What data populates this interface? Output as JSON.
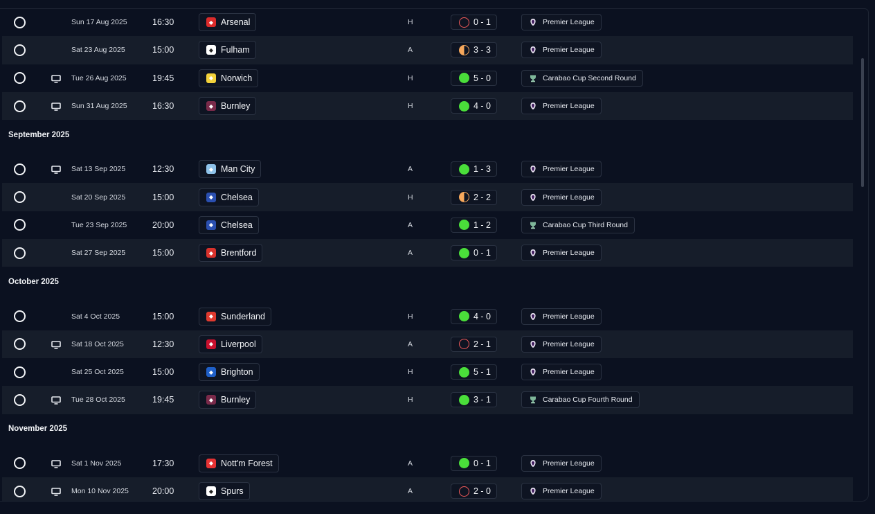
{
  "colors": {
    "win": "#4ade3a",
    "draw": "#f7a85c",
    "loss": "#f05a5a",
    "background": "#0b1120",
    "row_alt": "#161d2a"
  },
  "fixtures": [
    {
      "date": "Sun 17 Aug 2025",
      "time": "16:30",
      "opponent": "Arsenal",
      "crest": "arsenal",
      "crest_color": "#db2b2b",
      "venue": "H",
      "result": "0 - 1",
      "outcome": "loss",
      "tv": false,
      "competition": "Premier League",
      "comp_icon": "premier-league-icon",
      "alt": false
    },
    {
      "date": "Sat 23 Aug 2025",
      "time": "15:00",
      "opponent": "Fulham",
      "crest": "fulham",
      "crest_color": "#ffffff",
      "venue": "A",
      "result": "3 - 3",
      "outcome": "draw",
      "tv": false,
      "competition": "Premier League",
      "comp_icon": "premier-league-icon",
      "alt": true
    },
    {
      "date": "Tue 26 Aug 2025",
      "time": "19:45",
      "opponent": "Norwich",
      "crest": "norwich",
      "crest_color": "#f2d13a",
      "venue": "H",
      "result": "5 - 0",
      "outcome": "win",
      "tv": true,
      "competition": "Carabao Cup Second Round",
      "comp_icon": "carabao-cup-icon",
      "alt": false
    },
    {
      "date": "Sun 31 Aug 2025",
      "time": "16:30",
      "opponent": "Burnley",
      "crest": "burnley",
      "crest_color": "#7a2a4a",
      "venue": "H",
      "result": "4 - 0",
      "outcome": "win",
      "tv": true,
      "competition": "Premier League",
      "comp_icon": "premier-league-icon",
      "alt": true
    },
    {
      "month": "September 2025"
    },
    {
      "date": "Sat 13 Sep 2025",
      "time": "12:30",
      "opponent": "Man City",
      "crest": "mancity",
      "crest_color": "#8fc3ea",
      "venue": "A",
      "result": "1 - 3",
      "outcome": "win",
      "tv": true,
      "competition": "Premier League",
      "comp_icon": "premier-league-icon",
      "alt": false
    },
    {
      "date": "Sat 20 Sep 2025",
      "time": "15:00",
      "opponent": "Chelsea",
      "crest": "chelsea",
      "crest_color": "#2a4fb0",
      "venue": "H",
      "result": "2 - 2",
      "outcome": "draw",
      "tv": false,
      "competition": "Premier League",
      "comp_icon": "premier-league-icon",
      "alt": true
    },
    {
      "date": "Tue 23 Sep 2025",
      "time": "20:00",
      "opponent": "Chelsea",
      "crest": "chelsea",
      "crest_color": "#2a4fb0",
      "venue": "A",
      "result": "1 - 2",
      "outcome": "win",
      "tv": false,
      "competition": "Carabao Cup Third Round",
      "comp_icon": "carabao-cup-icon",
      "alt": false
    },
    {
      "date": "Sat 27 Sep 2025",
      "time": "15:00",
      "opponent": "Brentford",
      "crest": "brentford",
      "crest_color": "#d8322c",
      "venue": "A",
      "result": "0 - 1",
      "outcome": "win",
      "tv": false,
      "competition": "Premier League",
      "comp_icon": "premier-league-icon",
      "alt": true
    },
    {
      "month": "October 2025"
    },
    {
      "date": "Sat 4 Oct 2025",
      "time": "15:00",
      "opponent": "Sunderland",
      "crest": "sunderland",
      "crest_color": "#e03a2f",
      "venue": "H",
      "result": "4 - 0",
      "outcome": "win",
      "tv": false,
      "competition": "Premier League",
      "comp_icon": "premier-league-icon",
      "alt": false
    },
    {
      "date": "Sat 18 Oct 2025",
      "time": "12:30",
      "opponent": "Liverpool",
      "crest": "liverpool",
      "crest_color": "#c8102e",
      "venue": "A",
      "result": "2 - 1",
      "outcome": "loss",
      "tv": true,
      "competition": "Premier League",
      "comp_icon": "premier-league-icon",
      "alt": true
    },
    {
      "date": "Sat 25 Oct 2025",
      "time": "15:00",
      "opponent": "Brighton",
      "crest": "brighton",
      "crest_color": "#1f5fc7",
      "venue": "H",
      "result": "5 - 1",
      "outcome": "win",
      "tv": false,
      "competition": "Premier League",
      "comp_icon": "premier-league-icon",
      "alt": false
    },
    {
      "date": "Tue 28 Oct 2025",
      "time": "19:45",
      "opponent": "Burnley",
      "crest": "burnley",
      "crest_color": "#7a2a4a",
      "venue": "H",
      "result": "3 - 1",
      "outcome": "win",
      "tv": true,
      "competition": "Carabao Cup Fourth Round",
      "comp_icon": "carabao-cup-icon",
      "alt": true
    },
    {
      "month": "November 2025"
    },
    {
      "date": "Sat 1 Nov 2025",
      "time": "17:30",
      "opponent": "Nott'm Forest",
      "crest": "forest",
      "crest_color": "#e53233",
      "venue": "A",
      "result": "0 - 1",
      "outcome": "win",
      "tv": true,
      "competition": "Premier League",
      "comp_icon": "premier-league-icon",
      "alt": false
    },
    {
      "date": "Mon 10 Nov 2025",
      "time": "20:00",
      "opponent": "Spurs",
      "crest": "spurs",
      "crest_color": "#ffffff",
      "venue": "A",
      "result": "2 - 0",
      "outcome": "loss",
      "tv": true,
      "competition": "Premier League",
      "comp_icon": "premier-league-icon",
      "alt": true
    }
  ]
}
